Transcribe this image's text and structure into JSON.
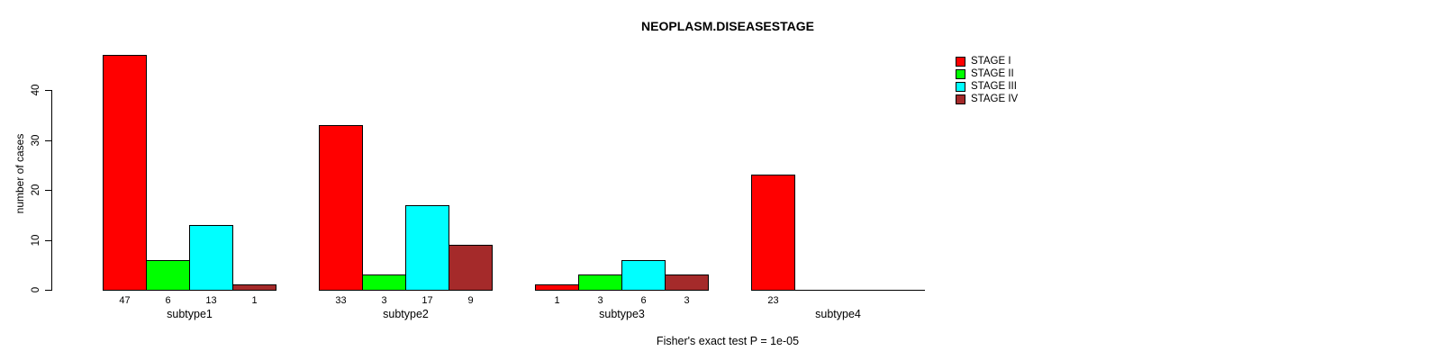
{
  "title": "NEOPLASM.DISEASESTAGE",
  "footer": "Fisher's exact test P = 1e-05",
  "chart_data": {
    "type": "bar",
    "title": "NEOPLASM.DISEASESTAGE",
    "xlabel": "",
    "ylabel": "number of cases",
    "categories": [
      "subtype1",
      "subtype2",
      "subtype3",
      "subtype4"
    ],
    "series": [
      {
        "name": "STAGE I",
        "color": "#ff0000",
        "values": [
          47,
          33,
          1,
          23
        ]
      },
      {
        "name": "STAGE II",
        "color": "#00ff00",
        "values": [
          6,
          3,
          3,
          0
        ]
      },
      {
        "name": "STAGE III",
        "color": "#00ffff",
        "values": [
          13,
          17,
          6,
          0
        ]
      },
      {
        "name": "STAGE IV",
        "color": "#a52a2a",
        "values": [
          1,
          9,
          3,
          0
        ]
      }
    ],
    "bar_value_labels": [
      [
        "47",
        "6",
        "13",
        "1"
      ],
      [
        "33",
        "3",
        "17",
        "9"
      ],
      [
        "1",
        "3",
        "6",
        "3"
      ],
      [
        "23",
        "",
        "",
        ""
      ]
    ],
    "yticks": [
      0,
      10,
      20,
      30,
      40
    ],
    "ylim": [
      0,
      47
    ],
    "grid": false,
    "legend_position": "top-right",
    "annotation": "Fisher's exact test P = 1e-05"
  }
}
